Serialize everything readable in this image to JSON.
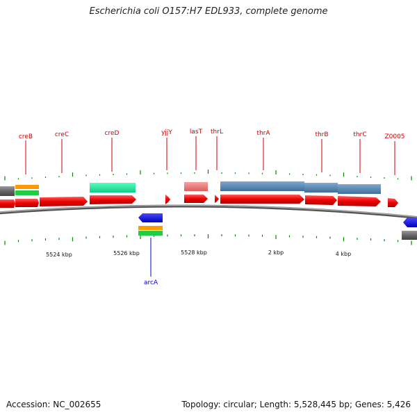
{
  "title": "Escherichia coli O157:H7 EDL933, complete genome",
  "footer": {
    "accession": "Accession: NC_002655",
    "summary": "Topology: circular; Length: 5,528,445 bp; Genes: 5,426"
  },
  "colors": {
    "forward_label": "#cc0000",
    "reverse_label": "#0000cc",
    "cds": "#ee0000",
    "tick": "#008800"
  },
  "tick_labels": [
    "5524 kbp",
    "5526 kbp",
    "5528 kbp",
    "2 kbp",
    "4 kbp"
  ],
  "forward_labels": [
    "creB",
    "creC",
    "creD",
    "yjjY",
    "lasT",
    "thrL",
    "thrA",
    "thrB",
    "thrC",
    "Z0005"
  ],
  "reverse_labels": [
    "arcA"
  ]
}
